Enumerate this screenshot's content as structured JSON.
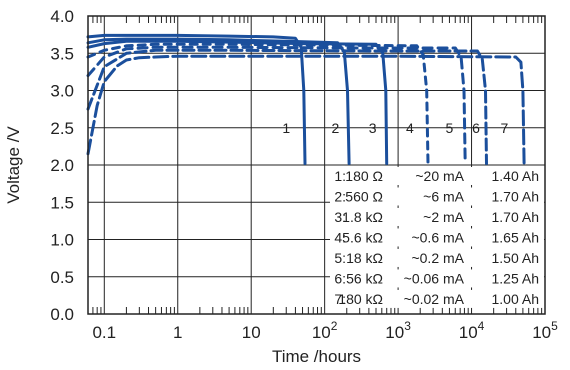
{
  "chart_data": {
    "type": "line",
    "title": "",
    "xlabel": "Time /hours",
    "ylabel": "Voltage /V",
    "x_scale": "log",
    "xlim": [
      0.06,
      100000
    ],
    "ylim": [
      0,
      4
    ],
    "grid": true,
    "x_tick_values": [
      0.1,
      1,
      10,
      100,
      1000,
      10000,
      100000
    ],
    "x_tick_labels": [
      {
        "base": "0.1",
        "exp": ""
      },
      {
        "base": "1",
        "exp": ""
      },
      {
        "base": "10",
        "exp": ""
      },
      {
        "base": "10",
        "exp": "2"
      },
      {
        "base": "10",
        "exp": "3"
      },
      {
        "base": "10",
        "exp": "4"
      },
      {
        "base": "10",
        "exp": "5"
      }
    ],
    "y_tick_values": [
      0,
      0.5,
      1,
      1.5,
      2,
      2.5,
      3,
      3.5,
      4
    ],
    "y_tick_labels": [
      "0.0",
      "0.5",
      "1.0",
      "1.5",
      "2.0",
      "2.5",
      "3.0",
      "3.5",
      "4.0"
    ],
    "line_color": "#1b4f9c",
    "series": [
      {
        "name": "1",
        "x": [
          0.06,
          0.1,
          0.2,
          0.5,
          1,
          5,
          20,
          40,
          48,
          52,
          54
        ],
        "y": [
          3.72,
          3.74,
          3.74,
          3.74,
          3.74,
          3.73,
          3.72,
          3.7,
          3.58,
          3.0,
          2.02
        ]
      },
      {
        "name": "2",
        "x": [
          0.06,
          0.1,
          0.2,
          0.5,
          1,
          5,
          30,
          150,
          185,
          205,
          215
        ],
        "y": [
          3.64,
          3.68,
          3.69,
          3.69,
          3.69,
          3.68,
          3.66,
          3.64,
          3.52,
          3.0,
          2.02
        ]
      },
      {
        "name": "3",
        "x": [
          0.06,
          0.1,
          0.2,
          0.5,
          1,
          5,
          50,
          500,
          620,
          680,
          700
        ],
        "y": [
          3.58,
          3.63,
          3.66,
          3.66,
          3.66,
          3.65,
          3.63,
          3.62,
          3.5,
          3.0,
          2.02
        ]
      },
      {
        "name": "4",
        "x": [
          0.06,
          0.1,
          0.2,
          0.5,
          1,
          5,
          100,
          1800,
          2200,
          2450,
          2550
        ],
        "y": [
          3.45,
          3.54,
          3.6,
          3.62,
          3.62,
          3.62,
          3.61,
          3.6,
          3.48,
          3.0,
          2.02
        ]
      },
      {
        "name": "5",
        "x": [
          0.06,
          0.1,
          0.2,
          0.5,
          1,
          5,
          300,
          6000,
          7200,
          7900,
          8200
        ],
        "y": [
          3.2,
          3.45,
          3.56,
          3.58,
          3.58,
          3.58,
          3.57,
          3.57,
          3.45,
          3.0,
          2.02
        ]
      },
      {
        "name": "6",
        "x": [
          0.06,
          0.1,
          0.2,
          0.5,
          1,
          5,
          500,
          12000,
          14000,
          15500,
          16000
        ],
        "y": [
          2.75,
          3.32,
          3.5,
          3.54,
          3.54,
          3.54,
          3.53,
          3.53,
          3.42,
          3.0,
          2.02
        ]
      },
      {
        "name": "7",
        "x": [
          0.06,
          0.08,
          0.1,
          0.15,
          0.2,
          0.3,
          0.5,
          1,
          5,
          1000,
          40000,
          47000,
          50000,
          52000
        ],
        "y": [
          2.15,
          2.8,
          3.12,
          3.33,
          3.41,
          3.44,
          3.45,
          3.46,
          3.46,
          3.46,
          3.45,
          3.38,
          3.0,
          2.02
        ]
      }
    ],
    "curve_labels": [
      {
        "text": "1",
        "x": 30,
        "y": 2.5
      },
      {
        "text": "2",
        "x": 140,
        "y": 2.5
      },
      {
        "text": "3",
        "x": 450,
        "y": 2.5
      },
      {
        "text": "4",
        "x": 1450,
        "y": 2.5
      },
      {
        "text": "5",
        "x": 5000,
        "y": 2.5
      },
      {
        "text": "6",
        "x": 11500,
        "y": 2.5
      },
      {
        "text": "7",
        "x": 28000,
        "y": 2.5
      }
    ],
    "legend_table": [
      [
        "1:",
        "180 Ω",
        "~20 mA",
        "1.40 Ah"
      ],
      [
        "2:",
        "560 Ω",
        "~6 mA",
        "1.70 Ah"
      ],
      [
        "3:",
        "1.8 kΩ",
        "~2 mA",
        "1.70 Ah"
      ],
      [
        "4:",
        "5.6 kΩ",
        "~0.6 mA",
        "1.65 Ah"
      ],
      [
        "5:",
        "18 kΩ",
        "~0.2 mA",
        "1.50 Ah"
      ],
      [
        "6:",
        "56 kΩ",
        "~0.06 mA",
        "1.25 Ah"
      ],
      [
        "7:",
        "180 kΩ",
        "~0.02 mA",
        "1.00 Ah"
      ]
    ],
    "legend_placement": "lower-right"
  }
}
